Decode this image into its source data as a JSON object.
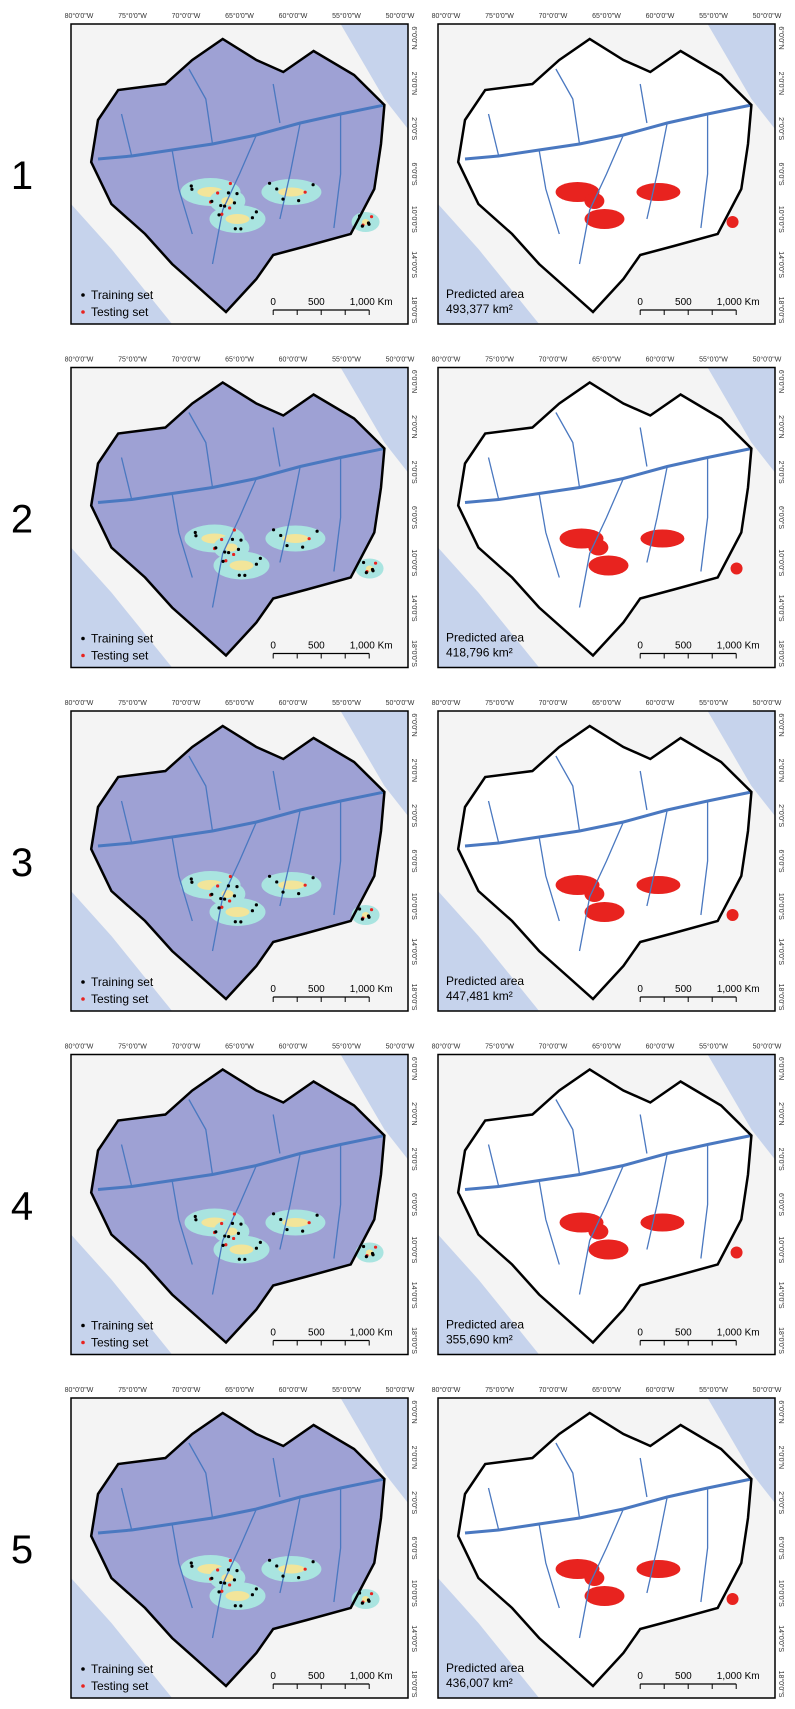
{
  "row_labels": [
    "1",
    "2",
    "3",
    "4",
    "5"
  ],
  "longitude_labels": [
    "80°0'0\"W",
    "75°0'0\"W",
    "70°0'0\"W",
    "65°0'0\"W",
    "60°0'0\"W",
    "55°0'0\"W",
    "50°0'0\"W"
  ],
  "latitude_labels": [
    "6°0'0\"N",
    "2°0'0\"N",
    "2°0'0\"S",
    "6°0'0\"S",
    "10°0'0\"S",
    "14°0'0\"S",
    "18°0'0\"S"
  ],
  "legend": {
    "training": "Training set",
    "testing": "Testing set"
  },
  "scale_labels": [
    "0",
    "500",
    "1,000 Km"
  ],
  "predicted_label": "Predicted area",
  "predicted_areas": [
    "493,377 km²",
    "418,796 km²",
    "447,481 km²",
    "355,690 km²",
    "436,007 km²"
  ]
}
